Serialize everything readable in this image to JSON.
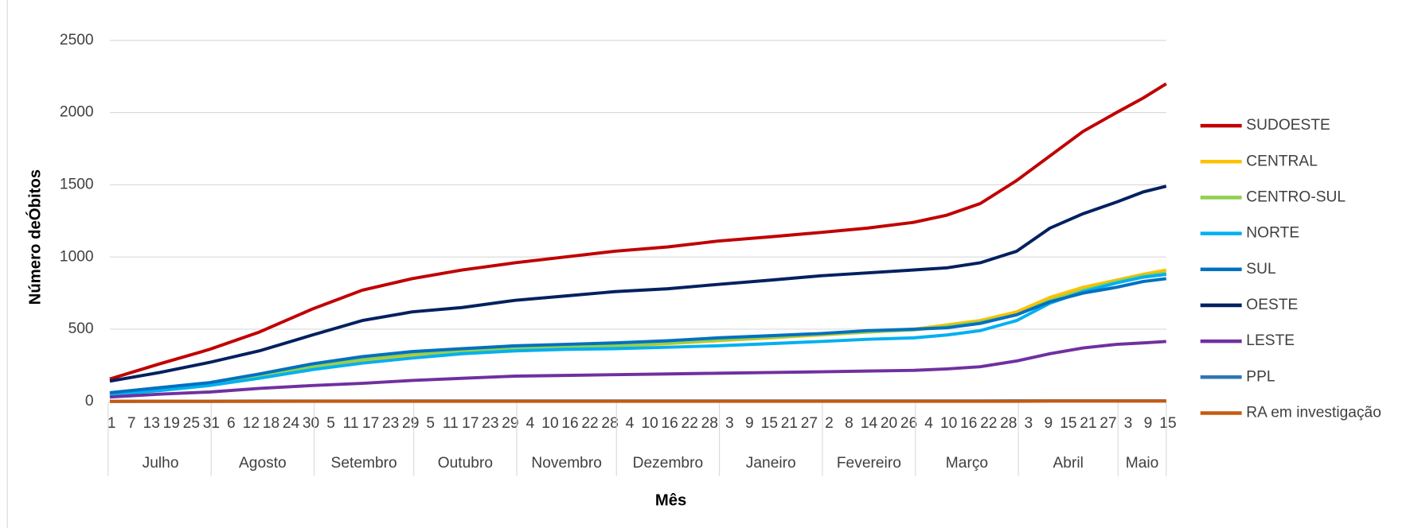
{
  "chart_data": {
    "type": "line",
    "y_title": "Número deÓbitos",
    "x_title": "Mês",
    "grid": true,
    "legend": "right",
    "xlim": [
      0,
      318
    ],
    "ylim": [
      0,
      2500
    ],
    "yticks": [
      0,
      500,
      1000,
      1500,
      2000,
      2500
    ],
    "xticks": [
      {
        "value": 0,
        "label": "1"
      },
      {
        "value": 6,
        "label": "7"
      },
      {
        "value": 12,
        "label": "13"
      },
      {
        "value": 18,
        "label": "19"
      },
      {
        "value": 24,
        "label": "25"
      },
      {
        "value": 30,
        "label": "31"
      },
      {
        "value": 36,
        "label": "6"
      },
      {
        "value": 42,
        "label": "12"
      },
      {
        "value": 48,
        "label": "18"
      },
      {
        "value": 54,
        "label": "24"
      },
      {
        "value": 60,
        "label": "30"
      },
      {
        "value": 66,
        "label": "5"
      },
      {
        "value": 72,
        "label": "11"
      },
      {
        "value": 78,
        "label": "17"
      },
      {
        "value": 84,
        "label": "23"
      },
      {
        "value": 90,
        "label": "29"
      },
      {
        "value": 96,
        "label": "5"
      },
      {
        "value": 102,
        "label": "11"
      },
      {
        "value": 108,
        "label": "17"
      },
      {
        "value": 114,
        "label": "23"
      },
      {
        "value": 120,
        "label": "29"
      },
      {
        "value": 126,
        "label": "4"
      },
      {
        "value": 132,
        "label": "10"
      },
      {
        "value": 138,
        "label": "16"
      },
      {
        "value": 144,
        "label": "22"
      },
      {
        "value": 150,
        "label": "28"
      },
      {
        "value": 156,
        "label": "4"
      },
      {
        "value": 162,
        "label": "10"
      },
      {
        "value": 168,
        "label": "16"
      },
      {
        "value": 174,
        "label": "22"
      },
      {
        "value": 180,
        "label": "28"
      },
      {
        "value": 186,
        "label": "3"
      },
      {
        "value": 192,
        "label": "9"
      },
      {
        "value": 198,
        "label": "15"
      },
      {
        "value": 204,
        "label": "21"
      },
      {
        "value": 210,
        "label": "27"
      },
      {
        "value": 216,
        "label": "2"
      },
      {
        "value": 222,
        "label": "8"
      },
      {
        "value": 228,
        "label": "14"
      },
      {
        "value": 234,
        "label": "20"
      },
      {
        "value": 240,
        "label": "26"
      },
      {
        "value": 246,
        "label": "4"
      },
      {
        "value": 252,
        "label": "10"
      },
      {
        "value": 258,
        "label": "16"
      },
      {
        "value": 264,
        "label": "22"
      },
      {
        "value": 270,
        "label": "28"
      },
      {
        "value": 276,
        "label": "3"
      },
      {
        "value": 282,
        "label": "9"
      },
      {
        "value": 288,
        "label": "15"
      },
      {
        "value": 294,
        "label": "21"
      },
      {
        "value": 300,
        "label": "27"
      },
      {
        "value": 306,
        "label": "3"
      },
      {
        "value": 312,
        "label": "9"
      },
      {
        "value": 318,
        "label": "15"
      }
    ],
    "months": [
      {
        "label": "Julho",
        "start": 0,
        "end": 30
      },
      {
        "label": "Agosto",
        "start": 31,
        "end": 61
      },
      {
        "label": "Setembro",
        "start": 62,
        "end": 91
      },
      {
        "label": "Outubro",
        "start": 92,
        "end": 122
      },
      {
        "label": "Novembro",
        "start": 123,
        "end": 152
      },
      {
        "label": "Dezembro",
        "start": 153,
        "end": 183
      },
      {
        "label": "Janeiro",
        "start": 184,
        "end": 214
      },
      {
        "label": "Fevereiro",
        "start": 215,
        "end": 242
      },
      {
        "label": "Março",
        "start": 243,
        "end": 273
      },
      {
        "label": "Abril",
        "start": 274,
        "end": 303
      },
      {
        "label": "Maio",
        "start": 304,
        "end": 318
      }
    ],
    "x": [
      0,
      15,
      30,
      45,
      61,
      76,
      91,
      106,
      122,
      137,
      152,
      168,
      183,
      199,
      214,
      228,
      242,
      252,
      262,
      273,
      283,
      293,
      303,
      311,
      318
    ],
    "series": [
      {
        "name": "SUDOESTE",
        "color": "#c00000",
        "values": [
          155,
          260,
          360,
          480,
          640,
          770,
          850,
          910,
          960,
          1000,
          1040,
          1070,
          1110,
          1140,
          1170,
          1200,
          1240,
          1290,
          1370,
          1530,
          1700,
          1870,
          2000,
          2100,
          2200
        ]
      },
      {
        "name": "CENTRAL",
        "color": "#ffc000",
        "values": [
          50,
          80,
          120,
          170,
          230,
          280,
          320,
          340,
          360,
          370,
          380,
          400,
          420,
          440,
          460,
          480,
          500,
          530,
          560,
          620,
          720,
          790,
          840,
          880,
          910
        ]
      },
      {
        "name": "CENTRO-SUL",
        "color": "#92d050",
        "values": [
          55,
          85,
          120,
          180,
          240,
          290,
          330,
          345,
          365,
          375,
          385,
          405,
          425,
          445,
          465,
          480,
          495,
          520,
          550,
          600,
          700,
          770,
          830,
          870,
          890
        ]
      },
      {
        "name": "NORTE",
        "color": "#00b0f0",
        "values": [
          45,
          75,
          110,
          160,
          220,
          265,
          300,
          330,
          350,
          360,
          365,
          375,
          385,
          400,
          415,
          430,
          440,
          460,
          490,
          560,
          680,
          760,
          820,
          860,
          880
        ]
      },
      {
        "name": "SUL",
        "color": "#0070c0",
        "values": [
          60,
          95,
          130,
          190,
          260,
          310,
          345,
          365,
          385,
          395,
          405,
          420,
          440,
          455,
          470,
          490,
          500,
          510,
          540,
          600,
          690,
          750,
          790,
          830,
          850
        ]
      },
      {
        "name": "OESTE",
        "color": "#002060",
        "values": [
          140,
          200,
          270,
          350,
          460,
          560,
          620,
          650,
          700,
          730,
          760,
          780,
          810,
          840,
          870,
          890,
          910,
          925,
          960,
          1040,
          1200,
          1300,
          1380,
          1450,
          1490
        ]
      },
      {
        "name": "LESTE",
        "color": "#7030a0",
        "values": [
          30,
          50,
          65,
          90,
          110,
          125,
          145,
          160,
          175,
          180,
          185,
          190,
          195,
          200,
          205,
          210,
          215,
          225,
          240,
          280,
          330,
          370,
          395,
          405,
          415
        ]
      },
      {
        "name": "PPL",
        "color": "#2e75b6",
        "values": [
          0,
          1,
          1,
          2,
          2,
          2,
          3,
          3,
          3,
          3,
          3,
          3,
          3,
          3,
          3,
          3,
          3,
          3,
          3,
          4,
          4,
          4,
          4,
          4,
          4
        ]
      },
      {
        "name": "RA em investigação",
        "color": "#c55a11",
        "values": [
          0,
          0,
          0,
          0,
          1,
          1,
          1,
          1,
          1,
          1,
          1,
          1,
          1,
          1,
          1,
          1,
          1,
          1,
          1,
          1,
          2,
          2,
          2,
          2,
          2
        ]
      }
    ]
  }
}
